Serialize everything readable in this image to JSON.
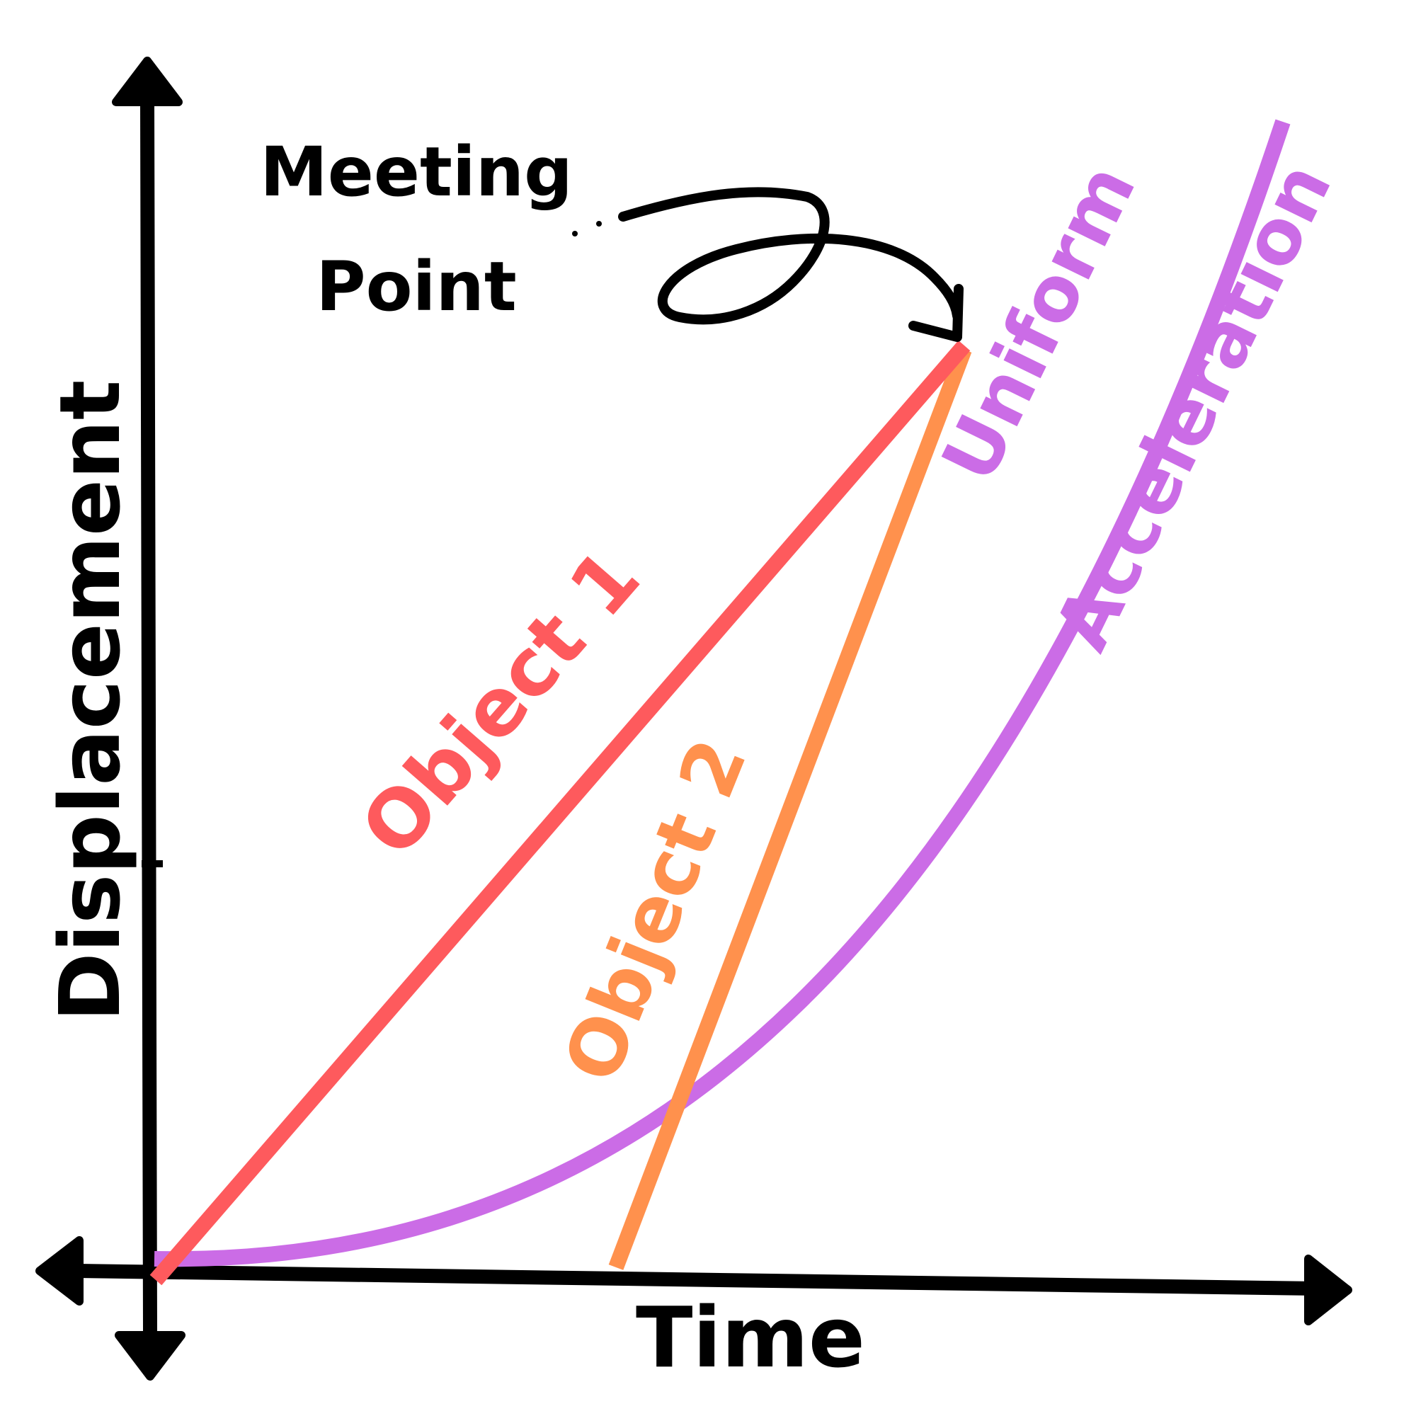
{
  "axes": {
    "y_label": "Displacement",
    "x_label": "Time"
  },
  "annotation": {
    "line1": "Meeting",
    "line2": "Point"
  },
  "series": [
    {
      "name": "Object 1",
      "color": "#fe5a5d"
    },
    {
      "name": "Object 2",
      "color": "#ff914d"
    },
    {
      "name": "Uniform",
      "color": "#cb6ce6"
    },
    {
      "name": "Acceleration",
      "color": "#cb6ce6"
    }
  ],
  "colors": {
    "axis": "#000000",
    "object1": "#fe5a5d",
    "object2": "#ff914d",
    "acceleration": "#cb6ce6",
    "background": "#ffffff"
  },
  "icons": [
    "arrow-up-icon",
    "arrow-down-icon",
    "arrow-left-icon",
    "arrow-right-icon",
    "curly-arrow-icon"
  ]
}
